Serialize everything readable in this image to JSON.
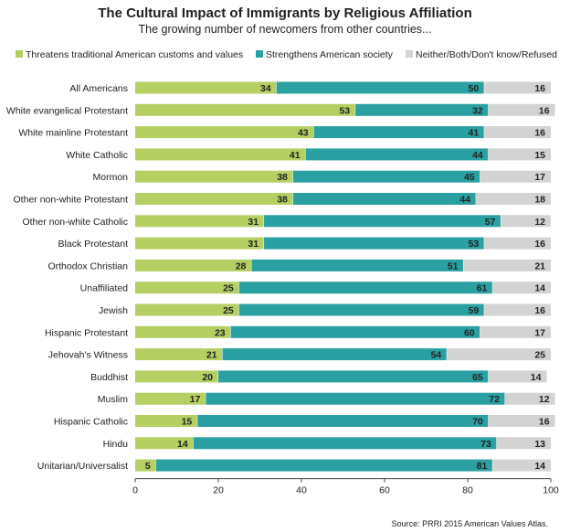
{
  "chart_data": {
    "type": "bar",
    "orientation": "horizontal",
    "stacked": true,
    "title": "The Cultural Impact of Immigrants by Religious Affiliation",
    "subtitle": "The growing number of newcomers from other countries...",
    "categories": [
      "All Americans",
      "White evangelical Protestant",
      "White mainline Protestant",
      "White Catholic",
      "Mormon",
      "Other non-white Protestant",
      "Other non-white Catholic",
      "Black Protestant",
      "Orthodox Christian",
      "Unaffiliated",
      "Jewish",
      "Hispanic Protestant",
      "Jehovah's Witness",
      "Buddhist",
      "Muslim",
      "Hispanic Catholic",
      "Hindu",
      "Unitarian/Universalist"
    ],
    "series": [
      {
        "name": "Threatens traditional American customs and values",
        "color": "#b5cf63",
        "values": [
          34,
          53,
          43,
          41,
          38,
          38,
          31,
          31,
          28,
          25,
          25,
          23,
          21,
          20,
          17,
          15,
          14,
          5
        ]
      },
      {
        "name": "Strengthens American society",
        "color": "#2aa0a2",
        "values": [
          50,
          32,
          41,
          44,
          45,
          44,
          57,
          53,
          51,
          61,
          59,
          60,
          54,
          65,
          72,
          70,
          73,
          81
        ]
      },
      {
        "name": "Neither/Both/Don't know/Refused",
        "color": "#d3d3d3",
        "values": [
          16,
          16,
          16,
          15,
          17,
          18,
          12,
          16,
          21,
          14,
          16,
          17,
          25,
          14,
          12,
          16,
          13,
          14
        ]
      }
    ],
    "xlim": [
      0,
      100
    ],
    "xticks": [
      0,
      20,
      40,
      60,
      80,
      100
    ],
    "grid": false,
    "legend_position": "top"
  },
  "source": "Source: PRRI 2015 American Values Atlas."
}
